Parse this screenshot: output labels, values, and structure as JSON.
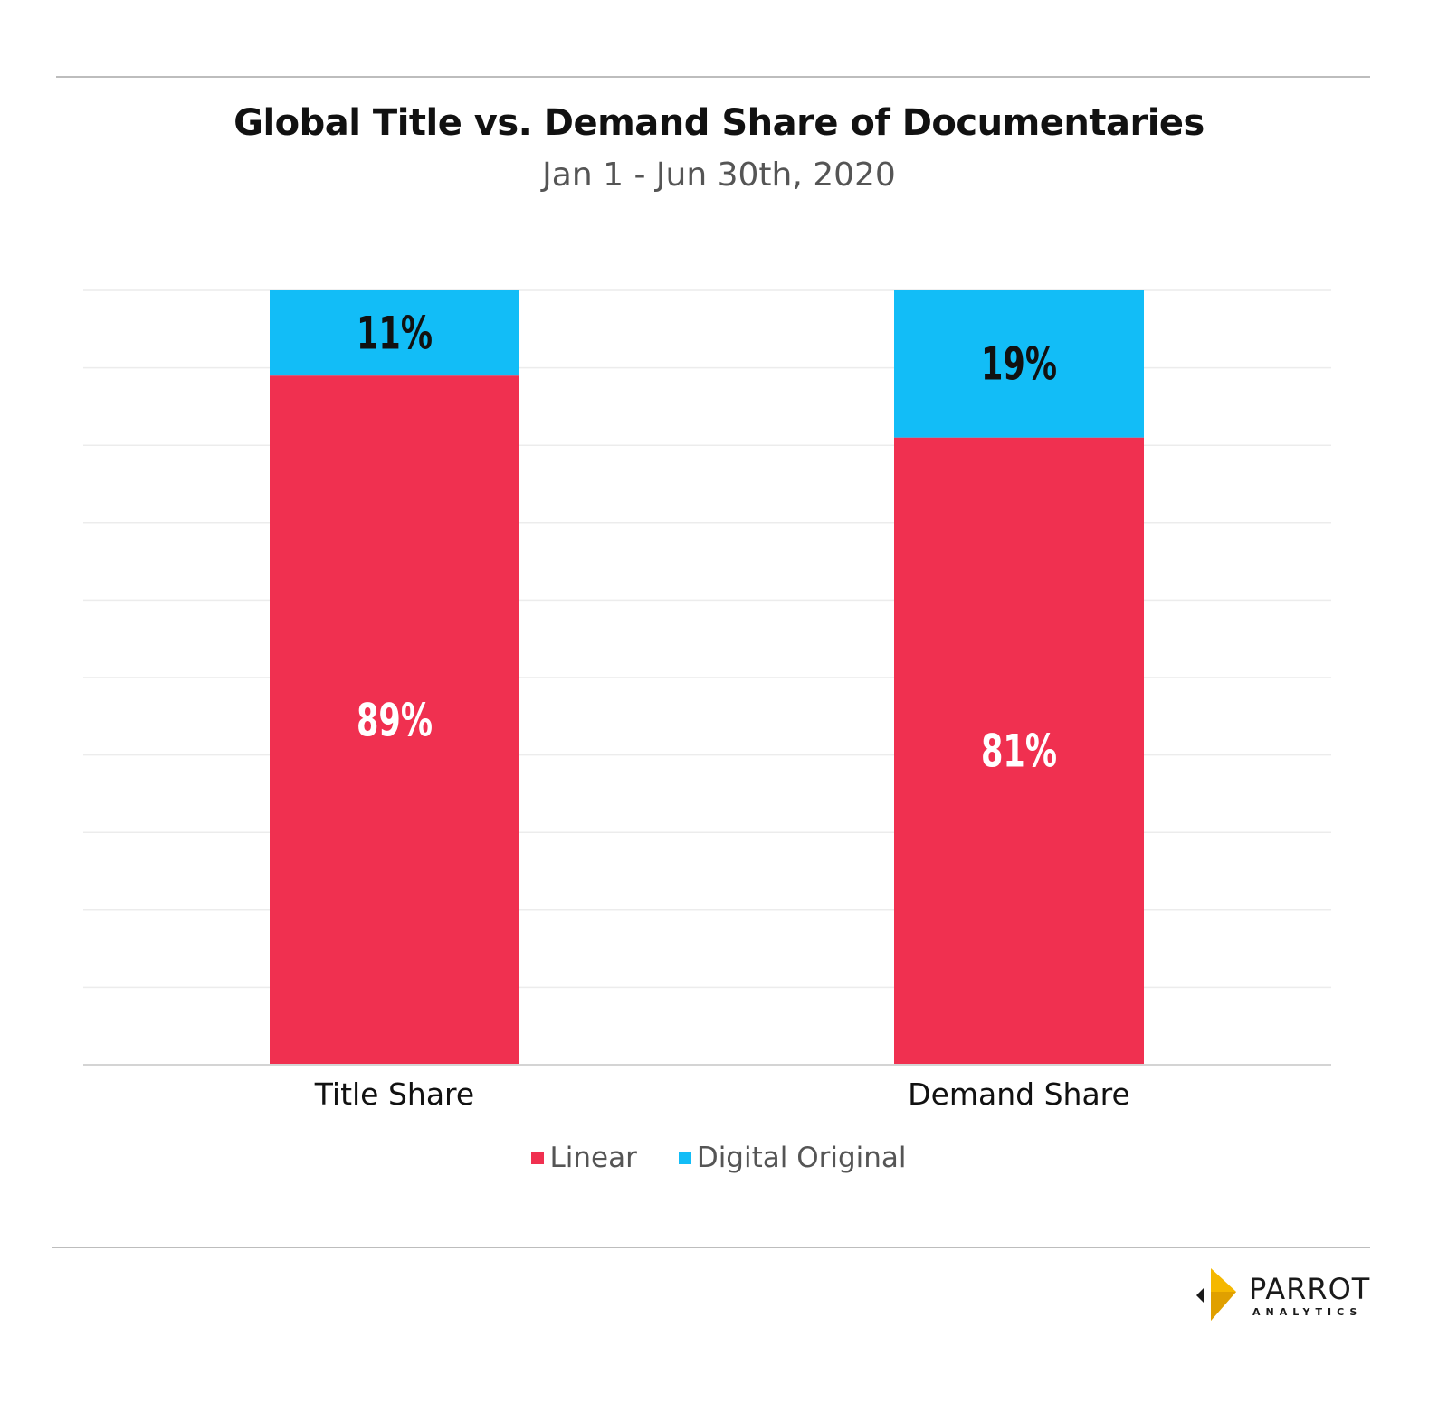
{
  "chart_data": {
    "type": "bar",
    "stacked": true,
    "title": "Global Title vs. Demand Share of Documentaries",
    "subtitle": "Jan 1 - Jun 30th, 2020",
    "categories": [
      "Title Share",
      "Demand Share"
    ],
    "series": [
      {
        "name": "Linear",
        "values": [
          89,
          81
        ],
        "labels": [
          "89%",
          "81%"
        ],
        "color": "#f03050",
        "label_color": "#ffffff"
      },
      {
        "name": "Digital Original",
        "values": [
          11,
          19
        ],
        "labels": [
          "11%",
          "19%"
        ],
        "color": "#12bdf7",
        "label_color": "#111111"
      }
    ],
    "ylim": [
      0,
      100
    ],
    "grid": true,
    "legend_position": "bottom"
  },
  "logo": {
    "name": "PARROT",
    "sub": "ANALYTICS",
    "colors": [
      "#f5b800",
      "#1a1a1a"
    ]
  }
}
